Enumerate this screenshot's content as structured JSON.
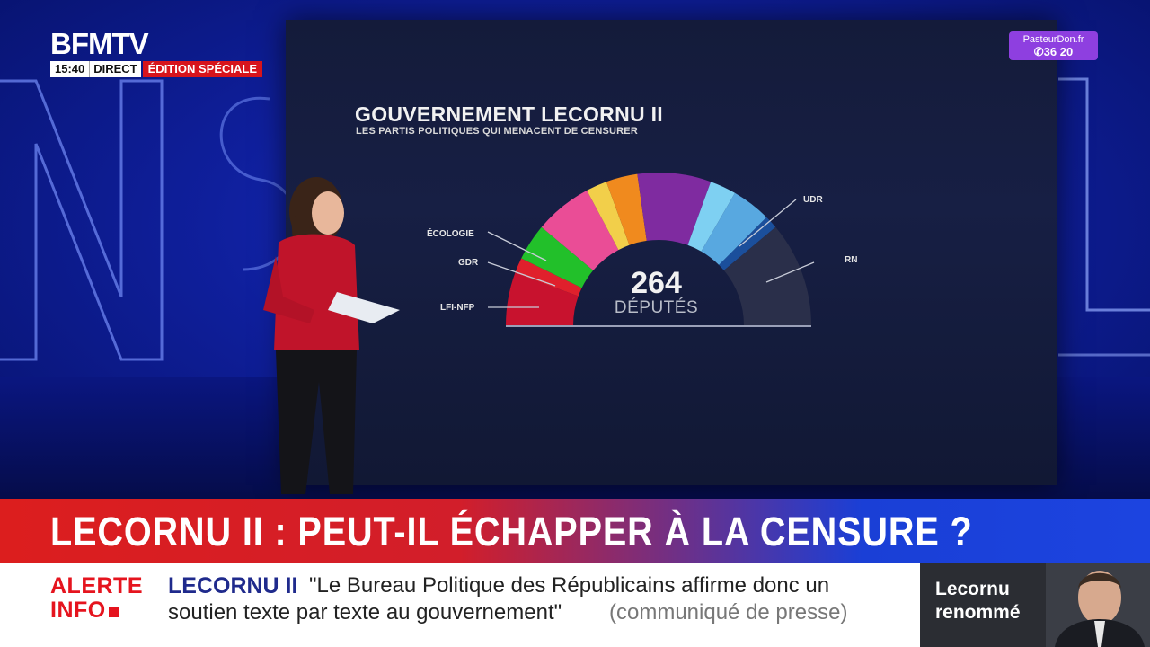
{
  "channel": {
    "logo": "BFMTV",
    "time": "15:40",
    "live": "DIRECT",
    "edition": "ÉDITION SPÉCIALE"
  },
  "sponsor": {
    "line1": "PasteurDon.fr",
    "line2": "36 20"
  },
  "screen": {
    "title": "GOUVERNEMENT LECORNU II",
    "subtitle": "LES PARTIS POLITIQUES QUI MENACENT DE CENSURER",
    "total_count": "264",
    "total_label": "DÉPUTÉS",
    "labels": {
      "ecologie": "ÉCOLOGIE",
      "gdr": "GDR",
      "lfi": "LFI-NFP",
      "udr": "UDR",
      "rn": "RN"
    },
    "segment_colors": {
      "lfi": "#c8122e",
      "gdr": "#e0202c",
      "ecologie": "#22c02a",
      "socialistes": "#ea4d96",
      "liot": "#f2cf4a",
      "modem_left": "#f08a1e",
      "ensemble": "#7f2ba0",
      "horizons": "#7ed0f2",
      "lr": "#58a8e0",
      "udr": "#1b4f9c",
      "rn": "#2a2f4a"
    }
  },
  "headline": "LECORNU II : PEUT-IL ÉCHAPPER À LA CENSURE ?",
  "ticker": {
    "alert_line1": "ALERTE",
    "alert_line2": "INFO",
    "topic": "LECORNU II",
    "quote_line1": "\"Le Bureau Politique des Républicains affirme donc un",
    "quote_line2": "soutien texte par texte au gouvernement\"",
    "source": "(communiqué de presse)"
  },
  "side_box": {
    "line1": "Lecornu",
    "line2": "renommé"
  }
}
